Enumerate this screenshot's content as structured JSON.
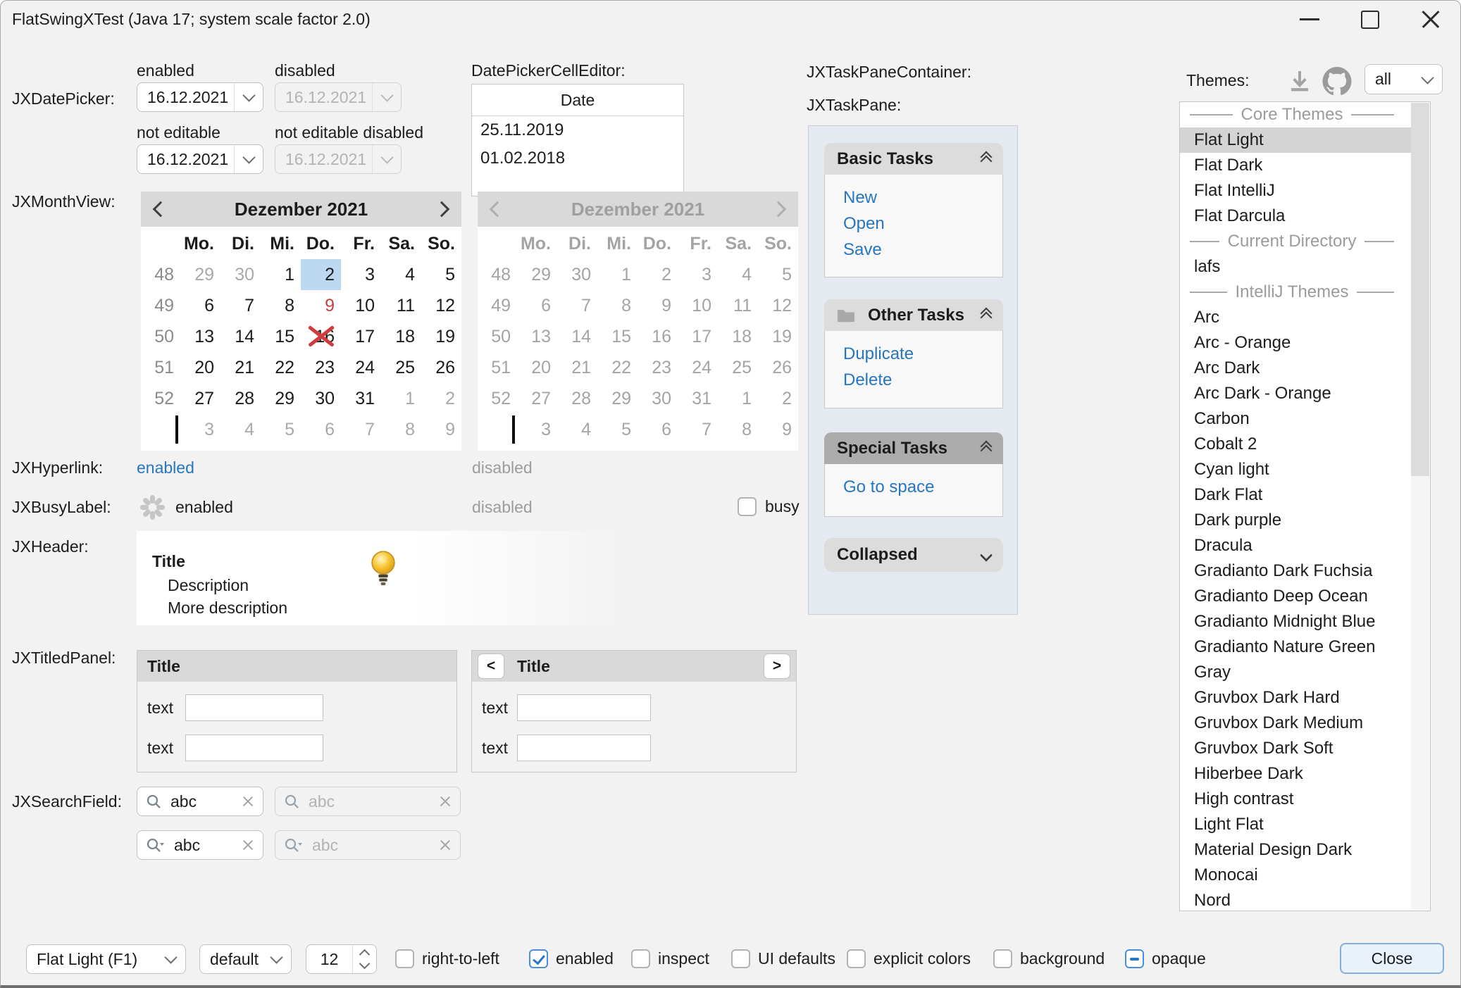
{
  "window": {
    "title": "FlatSwingXTest (Java 17;  system scale factor 2.0)"
  },
  "sections": {
    "datepicker_label": "JXDatePicker:",
    "monthview_label": "JXMonthView:",
    "hyperlink_label": "JXHyperlink:",
    "busylabel_label": "JXBusyLabel:",
    "header_label": "JXHeader:",
    "titledpanel_label": "JXTitledPanel:",
    "searchfield_label": "JXSearchField:",
    "taskpanecontainer_label": "JXTaskPaneContainer:",
    "taskpane_label": "JXTaskPane:"
  },
  "datepicker": {
    "enabled_label": "enabled",
    "disabled_label": "disabled",
    "not_editable_label": "not editable",
    "not_editable_disabled_label": "not editable disabled",
    "value": "16.12.2021"
  },
  "cell_editor": {
    "label": "DatePickerCellEditor:",
    "column": "Date",
    "rows": [
      "25.11.2019",
      "01.02.2018"
    ]
  },
  "monthview": {
    "title": "Dezember 2021",
    "weekdays": [
      "Mo.",
      "Di.",
      "Mi.",
      "Do.",
      "Fr.",
      "Sa.",
      "So."
    ],
    "weeks": [
      {
        "num": "48",
        "days": [
          {
            "t": "29",
            "out": true
          },
          {
            "t": "30",
            "out": true
          },
          {
            "t": "1"
          },
          {
            "t": "2",
            "selected": true
          },
          {
            "t": "3"
          },
          {
            "t": "4"
          },
          {
            "t": "5"
          }
        ]
      },
      {
        "num": "49",
        "days": [
          {
            "t": "6"
          },
          {
            "t": "7"
          },
          {
            "t": "8"
          },
          {
            "t": "9",
            "red": true
          },
          {
            "t": "10"
          },
          {
            "t": "11"
          },
          {
            "t": "12"
          }
        ]
      },
      {
        "num": "50",
        "days": [
          {
            "t": "13"
          },
          {
            "t": "14"
          },
          {
            "t": "15"
          },
          {
            "t": "16",
            "crossed": true
          },
          {
            "t": "17"
          },
          {
            "t": "18"
          },
          {
            "t": "19"
          }
        ]
      },
      {
        "num": "51",
        "days": [
          {
            "t": "20"
          },
          {
            "t": "21"
          },
          {
            "t": "22"
          },
          {
            "t": "23"
          },
          {
            "t": "24"
          },
          {
            "t": "25"
          },
          {
            "t": "26"
          }
        ]
      },
      {
        "num": "52",
        "days": [
          {
            "t": "27"
          },
          {
            "t": "28"
          },
          {
            "t": "29"
          },
          {
            "t": "30"
          },
          {
            "t": "31"
          },
          {
            "t": "1",
            "out": true
          },
          {
            "t": "2",
            "out": true
          }
        ]
      },
      {
        "num": "",
        "caret": true,
        "days": [
          {
            "t": "3",
            "out": true
          },
          {
            "t": "4",
            "out": true
          },
          {
            "t": "5",
            "out": true
          },
          {
            "t": "6",
            "out": true
          },
          {
            "t": "7",
            "out": true
          },
          {
            "t": "8",
            "out": true
          },
          {
            "t": "9",
            "out": true
          }
        ]
      }
    ]
  },
  "hyperlink": {
    "enabled": "enabled",
    "disabled": "disabled"
  },
  "busy": {
    "enabled": "enabled",
    "disabled": "disabled",
    "checkbox_label": "busy"
  },
  "header": {
    "title": "Title",
    "description": "Description",
    "more": "More description"
  },
  "titled_panel": {
    "title": "Title",
    "field_label": "text",
    "prev": "<",
    "next": ">"
  },
  "search": {
    "value": "abc"
  },
  "taskpane": {
    "panes": [
      {
        "title": "Basic Tasks",
        "special": false,
        "collapse": "up",
        "links": [
          "New",
          "Open",
          "Save"
        ]
      },
      {
        "title": "Other Tasks",
        "special": false,
        "icon": "folder",
        "collapse": "up",
        "links": [
          "Duplicate",
          "Delete"
        ]
      },
      {
        "title": "Special Tasks",
        "special": true,
        "collapse": "up",
        "links": [
          "Go to space"
        ]
      },
      {
        "title": "Collapsed",
        "special": false,
        "collapse": "down",
        "links": []
      }
    ]
  },
  "themes": {
    "label": "Themes:",
    "filter_value": "all",
    "items": [
      {
        "type": "separator",
        "label": "Core Themes"
      },
      {
        "type": "item",
        "label": "Flat Light",
        "selected": true
      },
      {
        "type": "item",
        "label": "Flat Dark"
      },
      {
        "type": "item",
        "label": "Flat IntelliJ"
      },
      {
        "type": "item",
        "label": "Flat Darcula"
      },
      {
        "type": "separator",
        "label": "Current Directory"
      },
      {
        "type": "item",
        "label": "lafs"
      },
      {
        "type": "separator",
        "label": "IntelliJ Themes"
      },
      {
        "type": "item",
        "label": "Arc"
      },
      {
        "type": "item",
        "label": "Arc - Orange"
      },
      {
        "type": "item",
        "label": "Arc Dark"
      },
      {
        "type": "item",
        "label": "Arc Dark - Orange"
      },
      {
        "type": "item",
        "label": "Carbon"
      },
      {
        "type": "item",
        "label": "Cobalt 2"
      },
      {
        "type": "item",
        "label": "Cyan light"
      },
      {
        "type": "item",
        "label": "Dark Flat"
      },
      {
        "type": "item",
        "label": "Dark purple"
      },
      {
        "type": "item",
        "label": "Dracula"
      },
      {
        "type": "item",
        "label": "Gradianto Dark Fuchsia"
      },
      {
        "type": "item",
        "label": "Gradianto Deep Ocean"
      },
      {
        "type": "item",
        "label": "Gradianto Midnight Blue"
      },
      {
        "type": "item",
        "label": "Gradianto Nature Green"
      },
      {
        "type": "item",
        "label": "Gray"
      },
      {
        "type": "item",
        "label": "Gruvbox Dark Hard"
      },
      {
        "type": "item",
        "label": "Gruvbox Dark Medium"
      },
      {
        "type": "item",
        "label": "Gruvbox Dark Soft"
      },
      {
        "type": "item",
        "label": "Hiberbee Dark"
      },
      {
        "type": "item",
        "label": "High contrast"
      },
      {
        "type": "item",
        "label": "Light Flat"
      },
      {
        "type": "item",
        "label": "Material Design Dark"
      },
      {
        "type": "item",
        "label": "Monocai"
      },
      {
        "type": "item",
        "label": "Nord"
      }
    ]
  },
  "bottom": {
    "laf_combo": "Flat Light (F1)",
    "font_combo": "default",
    "size_spinner": "12",
    "checkboxes": [
      {
        "label": "right-to-left",
        "state": "unchecked"
      },
      {
        "label": "enabled",
        "state": "checked"
      },
      {
        "label": "inspect",
        "state": "unchecked"
      },
      {
        "label": "UI defaults",
        "state": "unchecked"
      },
      {
        "label": "explicit colors",
        "state": "unchecked"
      },
      {
        "label": "background",
        "state": "unchecked"
      },
      {
        "label": "opaque",
        "state": "indeterminate"
      }
    ],
    "close_button": "Close"
  },
  "colors": {
    "accent": "#2676c0",
    "day_selection": "#bdd9f1",
    "flag_red": "#c74040",
    "cross_red": "#d13b3b"
  }
}
